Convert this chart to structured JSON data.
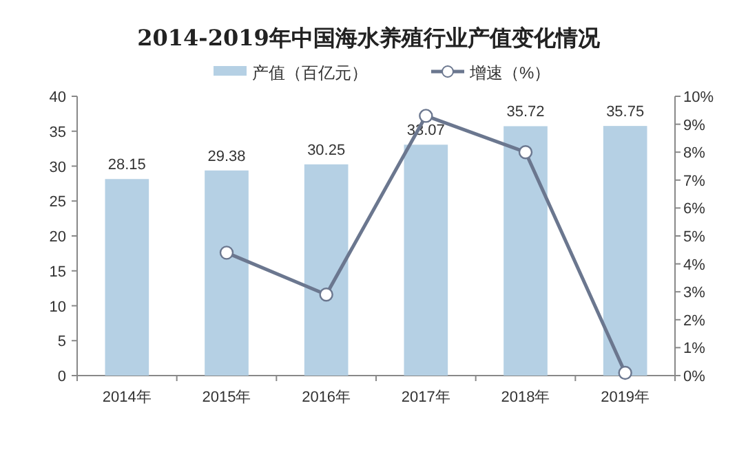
{
  "chart_data": {
    "type": "bar",
    "title": "2014-2019年中国海水养殖行业产值变化情况",
    "categories": [
      "2014年",
      "2015年",
      "2016年",
      "2017年",
      "2018年",
      "2019年"
    ],
    "series": [
      {
        "name": "产值（百亿元）",
        "color": "#b5d0e4",
        "values": [
          28.15,
          29.38,
          30.25,
          33.07,
          35.72,
          35.75
        ],
        "value_labels": [
          "28.15",
          "29.38",
          "30.25",
          "33.07",
          "35.72",
          "35.75"
        ]
      },
      {
        "name": "增速（%）",
        "type": "line",
        "axis": "y2",
        "color": "#6b778f",
        "marker": "circle",
        "values": [
          null,
          4.4,
          2.9,
          9.3,
          8.0,
          0.1
        ]
      }
    ],
    "ylim": [
      0,
      40
    ],
    "yticks": [
      0,
      5,
      10,
      15,
      20,
      25,
      30,
      35,
      40
    ],
    "y2lim": [
      0,
      10
    ],
    "y2ticks": [
      {
        "value": 0,
        "label": "0%"
      },
      {
        "value": 1,
        "label": "1%"
      },
      {
        "value": 2,
        "label": "2%"
      },
      {
        "value": 3,
        "label": "3%"
      },
      {
        "value": 4,
        "label": "4%"
      },
      {
        "value": 5,
        "label": "5%"
      },
      {
        "value": 6,
        "label": "6%"
      },
      {
        "value": 7,
        "label": "7%"
      },
      {
        "value": 8,
        "label": "8%"
      },
      {
        "value": 9,
        "label": "9%"
      },
      {
        "value": 10,
        "label": "10%"
      }
    ],
    "legend": "top",
    "grid": false
  }
}
